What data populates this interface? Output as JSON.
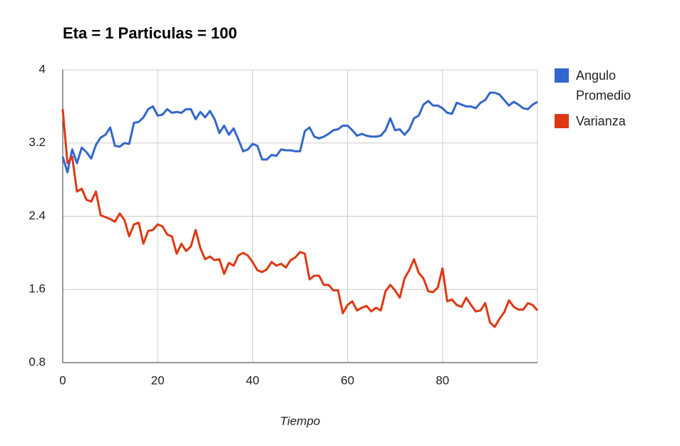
{
  "chart_data": {
    "type": "line",
    "title": "Eta = 1 Particulas = 100",
    "x_label": "Tiempo",
    "x": [
      0,
      1,
      2,
      3,
      4,
      5,
      6,
      7,
      8,
      9,
      10,
      11,
      12,
      13,
      14,
      15,
      16,
      17,
      18,
      19,
      20,
      21,
      22,
      23,
      24,
      25,
      26,
      27,
      28,
      29,
      30,
      31,
      32,
      33,
      34,
      35,
      36,
      37,
      38,
      39,
      40,
      41,
      42,
      43,
      44,
      45,
      46,
      47,
      48,
      49,
      50,
      51,
      52,
      53,
      54,
      55,
      56,
      57,
      58,
      59,
      60,
      61,
      62,
      63,
      64,
      65,
      66,
      67,
      68,
      69,
      70,
      71,
      72,
      73,
      74,
      75,
      76,
      77,
      78,
      79,
      80,
      81,
      82,
      83,
      84,
      85,
      86,
      87,
      88,
      89,
      90,
      91,
      92,
      93,
      94,
      95,
      96,
      97,
      98,
      99,
      100
    ],
    "series": [
      {
        "name": "Angulo Promedio",
        "color": "#3366cc",
        "values": [
          3.05,
          2.88,
          3.13,
          2.98,
          3.15,
          3.1,
          3.03,
          3.18,
          3.26,
          3.29,
          3.37,
          3.17,
          3.16,
          3.2,
          3.19,
          3.42,
          3.43,
          3.48,
          3.57,
          3.6,
          3.5,
          3.51,
          3.57,
          3.53,
          3.54,
          3.53,
          3.57,
          3.57,
          3.46,
          3.54,
          3.48,
          3.55,
          3.46,
          3.31,
          3.39,
          3.29,
          3.36,
          3.24,
          3.11,
          3.13,
          3.19,
          3.17,
          3.02,
          3.02,
          3.07,
          3.06,
          3.13,
          3.12,
          3.12,
          3.11,
          3.11,
          3.33,
          3.37,
          3.27,
          3.25,
          3.27,
          3.3,
          3.34,
          3.35,
          3.39,
          3.39,
          3.34,
          3.28,
          3.3,
          3.28,
          3.27,
          3.27,
          3.28,
          3.34,
          3.47,
          3.34,
          3.35,
          3.29,
          3.35,
          3.47,
          3.5,
          3.62,
          3.66,
          3.61,
          3.61,
          3.58,
          3.53,
          3.52,
          3.64,
          3.62,
          3.6,
          3.6,
          3.58,
          3.64,
          3.67,
          3.75,
          3.75,
          3.73,
          3.67,
          3.61,
          3.65,
          3.62,
          3.58,
          3.57,
          3.62,
          3.65
        ]
      },
      {
        "name": "Varianza",
        "color": "#dc3912",
        "values": [
          3.57,
          2.98,
          3.05,
          2.67,
          2.7,
          2.58,
          2.56,
          2.67,
          2.41,
          2.39,
          2.37,
          2.34,
          2.43,
          2.36,
          2.18,
          2.31,
          2.33,
          2.1,
          2.24,
          2.25,
          2.31,
          2.29,
          2.2,
          2.18,
          1.99,
          2.1,
          2.02,
          2.07,
          2.25,
          2.05,
          1.93,
          1.96,
          1.92,
          1.93,
          1.77,
          1.89,
          1.86,
          1.97,
          2.0,
          1.97,
          1.9,
          1.81,
          1.79,
          1.82,
          1.9,
          1.86,
          1.88,
          1.84,
          1.92,
          1.95,
          2.01,
          1.99,
          1.71,
          1.75,
          1.75,
          1.65,
          1.65,
          1.59,
          1.59,
          1.34,
          1.43,
          1.47,
          1.37,
          1.4,
          1.42,
          1.36,
          1.4,
          1.37,
          1.58,
          1.65,
          1.59,
          1.51,
          1.72,
          1.81,
          1.93,
          1.78,
          1.72,
          1.58,
          1.57,
          1.62,
          1.83,
          1.47,
          1.49,
          1.43,
          1.41,
          1.51,
          1.43,
          1.36,
          1.37,
          1.45,
          1.24,
          1.19,
          1.28,
          1.35,
          1.48,
          1.41,
          1.38,
          1.38,
          1.45,
          1.43,
          1.37
        ]
      }
    ],
    "xlim": [
      0,
      100
    ],
    "xticks": [
      0,
      20,
      40,
      60,
      80
    ],
    "ylim": [
      0.8,
      4
    ],
    "yticks": [
      0.8,
      1.6,
      2.4,
      3.2,
      4
    ],
    "grid": true,
    "legend": "right"
  }
}
